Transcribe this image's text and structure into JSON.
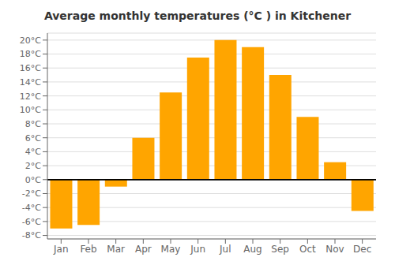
{
  "chart_data": {
    "type": "bar",
    "title": "Average monthly temperatures (°C ) in Kitchener",
    "categories": [
      "Jan",
      "Feb",
      "Mar",
      "Apr",
      "May",
      "Jun",
      "Jul",
      "Aug",
      "Sep",
      "Oct",
      "Nov",
      "Dec"
    ],
    "values": [
      -7,
      -6.5,
      -1,
      6,
      12.5,
      17.5,
      20,
      19,
      15,
      9,
      2.5,
      -4.5
    ],
    "color": "#FFA500",
    "ylim": [
      -8.5,
      21
    ],
    "yticks": [
      {
        "value": -8,
        "label": "-8°C"
      },
      {
        "value": -6,
        "label": "-6°C"
      },
      {
        "value": -4,
        "label": "-4°C"
      },
      {
        "value": -2,
        "label": "-2°C"
      },
      {
        "value": 0,
        "label": "0°C"
      },
      {
        "value": 2,
        "label": "2°C"
      },
      {
        "value": 4,
        "label": "4°C"
      },
      {
        "value": 6,
        "label": "6°C"
      },
      {
        "value": 8,
        "label": "8°C"
      },
      {
        "value": 10,
        "label": "10°C"
      },
      {
        "value": 12,
        "label": "12°C"
      },
      {
        "value": 14,
        "label": "14°C"
      },
      {
        "value": 16,
        "label": "16°C"
      },
      {
        "value": 18,
        "label": "18°C"
      },
      {
        "value": 20,
        "label": "20°C"
      }
    ],
    "grid": true
  }
}
